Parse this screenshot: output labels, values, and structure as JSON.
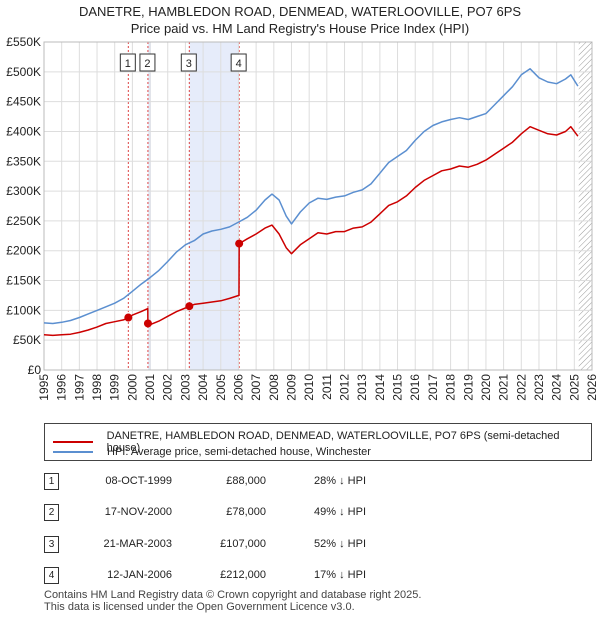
{
  "chart_data": {
    "type": "line",
    "title": "DANETRE, HAMBLEDON ROAD, DENMEAD, WATERLOOVILLE, PO7 6PS",
    "subtitle": "Price paid vs. HM Land Registry's House Price Index (HPI)",
    "xlim": [
      1995,
      2026
    ],
    "ylim": [
      0,
      550000
    ],
    "x_ticks": [
      "1995",
      "1996",
      "1997",
      "1998",
      "1999",
      "2000",
      "2001",
      "2002",
      "2003",
      "2004",
      "2005",
      "2006",
      "2007",
      "2008",
      "2009",
      "2010",
      "2011",
      "2012",
      "2013",
      "2014",
      "2015",
      "2016",
      "2017",
      "2018",
      "2019",
      "2020",
      "2021",
      "2022",
      "2023",
      "2024",
      "2025",
      "2026"
    ],
    "y_ticks": [
      {
        "value": 0,
        "label": "£0"
      },
      {
        "value": 50000,
        "label": "£50K"
      },
      {
        "value": 100000,
        "label": "£100K"
      },
      {
        "value": 150000,
        "label": "£150K"
      },
      {
        "value": 200000,
        "label": "£200K"
      },
      {
        "value": 250000,
        "label": "£250K"
      },
      {
        "value": 300000,
        "label": "£300K"
      },
      {
        "value": 350000,
        "label": "£350K"
      },
      {
        "value": 400000,
        "label": "£400K"
      },
      {
        "value": 450000,
        "label": "£450K"
      },
      {
        "value": 500000,
        "label": "£500K"
      },
      {
        "value": 550000,
        "label": "£550K"
      }
    ],
    "shaded_ranges": [
      [
        2000.88,
        2001.05
      ],
      [
        2003.22,
        2006.04
      ]
    ],
    "future_hatch_from": 2025.25,
    "series": [
      {
        "name": "DANETRE, HAMBLEDON ROAD, DENMEAD, WATERLOOVILLE, PO7 6PS (semi-detached house)",
        "color": "#cc0000",
        "points": [
          [
            1995.0,
            59000
          ],
          [
            1995.5,
            58000
          ],
          [
            1996.0,
            59000
          ],
          [
            1996.5,
            60000
          ],
          [
            1997.0,
            63000
          ],
          [
            1997.5,
            67000
          ],
          [
            1998.0,
            72000
          ],
          [
            1998.5,
            78000
          ],
          [
            1999.0,
            81000
          ],
          [
            1999.5,
            84000
          ],
          [
            1999.77,
            88000
          ],
          [
            2000.0,
            92000
          ],
          [
            2000.5,
            98000
          ],
          [
            2000.87,
            103000
          ],
          [
            2000.88,
            78000
          ],
          [
            2001.0,
            76000
          ],
          [
            2001.5,
            82000
          ],
          [
            2002.0,
            90000
          ],
          [
            2002.5,
            98000
          ],
          [
            2003.0,
            104000
          ],
          [
            2003.22,
            107000
          ],
          [
            2003.5,
            110000
          ],
          [
            2004.0,
            112000
          ],
          [
            2004.5,
            114000
          ],
          [
            2005.0,
            116000
          ],
          [
            2005.5,
            120000
          ],
          [
            2006.0,
            125000
          ],
          [
            2006.03,
            125000
          ],
          [
            2006.04,
            212000
          ],
          [
            2006.5,
            220000
          ],
          [
            2007.0,
            228000
          ],
          [
            2007.5,
            238000
          ],
          [
            2007.9,
            243000
          ],
          [
            2008.3,
            228000
          ],
          [
            2008.7,
            205000
          ],
          [
            2009.0,
            195000
          ],
          [
            2009.5,
            210000
          ],
          [
            2010.0,
            220000
          ],
          [
            2010.5,
            230000
          ],
          [
            2011.0,
            228000
          ],
          [
            2011.5,
            232000
          ],
          [
            2012.0,
            232000
          ],
          [
            2012.5,
            238000
          ],
          [
            2013.0,
            240000
          ],
          [
            2013.5,
            248000
          ],
          [
            2014.0,
            262000
          ],
          [
            2014.5,
            276000
          ],
          [
            2015.0,
            282000
          ],
          [
            2015.5,
            292000
          ],
          [
            2016.0,
            306000
          ],
          [
            2016.5,
            318000
          ],
          [
            2017.0,
            326000
          ],
          [
            2017.5,
            334000
          ],
          [
            2018.0,
            337000
          ],
          [
            2018.5,
            342000
          ],
          [
            2019.0,
            340000
          ],
          [
            2019.5,
            345000
          ],
          [
            2020.0,
            352000
          ],
          [
            2020.5,
            362000
          ],
          [
            2021.0,
            372000
          ],
          [
            2021.5,
            382000
          ],
          [
            2022.0,
            396000
          ],
          [
            2022.5,
            408000
          ],
          [
            2023.0,
            402000
          ],
          [
            2023.5,
            396000
          ],
          [
            2024.0,
            394000
          ],
          [
            2024.5,
            400000
          ],
          [
            2024.8,
            408000
          ],
          [
            2025.2,
            392000
          ]
        ]
      },
      {
        "name": "HPI: Average price, semi-detached house, Winchester",
        "color": "#5b8fd0",
        "points": [
          [
            1995.0,
            79000
          ],
          [
            1995.5,
            78000
          ],
          [
            1996.0,
            80000
          ],
          [
            1996.5,
            83000
          ],
          [
            1997.0,
            88000
          ],
          [
            1997.5,
            94000
          ],
          [
            1998.0,
            100000
          ],
          [
            1998.5,
            106000
          ],
          [
            1999.0,
            112000
          ],
          [
            1999.5,
            120000
          ],
          [
            2000.0,
            132000
          ],
          [
            2000.5,
            144000
          ],
          [
            2001.0,
            155000
          ],
          [
            2001.5,
            167000
          ],
          [
            2002.0,
            182000
          ],
          [
            2002.5,
            198000
          ],
          [
            2003.0,
            210000
          ],
          [
            2003.5,
            217000
          ],
          [
            2004.0,
            228000
          ],
          [
            2004.5,
            233000
          ],
          [
            2005.0,
            236000
          ],
          [
            2005.5,
            240000
          ],
          [
            2006.0,
            248000
          ],
          [
            2006.5,
            256000
          ],
          [
            2007.0,
            268000
          ],
          [
            2007.5,
            285000
          ],
          [
            2007.9,
            295000
          ],
          [
            2008.3,
            285000
          ],
          [
            2008.7,
            258000
          ],
          [
            2009.0,
            245000
          ],
          [
            2009.5,
            265000
          ],
          [
            2010.0,
            280000
          ],
          [
            2010.5,
            288000
          ],
          [
            2011.0,
            286000
          ],
          [
            2011.5,
            290000
          ],
          [
            2012.0,
            292000
          ],
          [
            2012.5,
            298000
          ],
          [
            2013.0,
            302000
          ],
          [
            2013.5,
            312000
          ],
          [
            2014.0,
            330000
          ],
          [
            2014.5,
            348000
          ],
          [
            2015.0,
            358000
          ],
          [
            2015.5,
            368000
          ],
          [
            2016.0,
            385000
          ],
          [
            2016.5,
            400000
          ],
          [
            2017.0,
            410000
          ],
          [
            2017.5,
            416000
          ],
          [
            2018.0,
            420000
          ],
          [
            2018.5,
            423000
          ],
          [
            2019.0,
            420000
          ],
          [
            2019.5,
            425000
          ],
          [
            2020.0,
            430000
          ],
          [
            2020.5,
            445000
          ],
          [
            2021.0,
            460000
          ],
          [
            2021.5,
            475000
          ],
          [
            2022.0,
            495000
          ],
          [
            2022.5,
            505000
          ],
          [
            2023.0,
            490000
          ],
          [
            2023.5,
            483000
          ],
          [
            2024.0,
            480000
          ],
          [
            2024.5,
            488000
          ],
          [
            2024.8,
            495000
          ],
          [
            2025.2,
            476000
          ]
        ]
      }
    ],
    "markers": [
      {
        "num": "1",
        "x": 1999.77,
        "y": 88000
      },
      {
        "num": "2",
        "x": 2000.88,
        "y": 78000
      },
      {
        "num": "3",
        "x": 2003.22,
        "y": 107000
      },
      {
        "num": "4",
        "x": 2006.04,
        "y": 212000
      }
    ]
  },
  "legend": {
    "property_label": "DANETRE, HAMBLEDON ROAD, DENMEAD, WATERLOOVILLE, PO7 6PS (semi-detached house)",
    "hpi_label": "HPI: Average price, semi-detached house, Winchester"
  },
  "transactions": [
    {
      "num": "1",
      "date": "08-OCT-1999",
      "price": "£88,000",
      "hpi": "28% ↓ HPI"
    },
    {
      "num": "2",
      "date": "17-NOV-2000",
      "price": "£78,000",
      "hpi": "49% ↓ HPI"
    },
    {
      "num": "3",
      "date": "21-MAR-2003",
      "price": "£107,000",
      "hpi": "52% ↓ HPI"
    },
    {
      "num": "4",
      "date": "12-JAN-2006",
      "price": "£212,000",
      "hpi": "17% ↓ HPI"
    }
  ],
  "footer": {
    "line1": "Contains HM Land Registry data © Crown copyright and database right 2025.",
    "line2": "This data is licensed under the Open Government Licence v3.0."
  },
  "colors": {
    "property": "#cc0000",
    "hpi": "#5b8fd0",
    "shade": "#e6ecfa",
    "grid": "#dddddd"
  }
}
